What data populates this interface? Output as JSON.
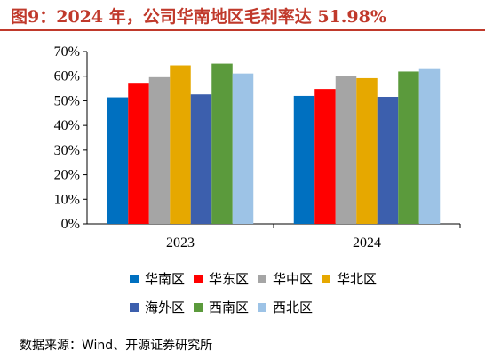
{
  "title": "图9：2024 年，公司华南地区毛利率达 51.98%",
  "source": "数据来源：Wind、开源证券研究所",
  "chart_data": {
    "type": "bar",
    "categories": [
      "2023",
      "2024"
    ],
    "ylim": [
      0,
      70
    ],
    "ytick_values": [
      0,
      10,
      20,
      30,
      40,
      50,
      60,
      70
    ],
    "ytick_labels": [
      "0%",
      "10%",
      "20%",
      "30%",
      "40%",
      "50%",
      "60%",
      "70%"
    ],
    "grid": false,
    "legend_position": "bottom",
    "series": [
      {
        "name": "华南区",
        "color": "#0070C0",
        "values": [
          51.4,
          51.98
        ]
      },
      {
        "name": "华东区",
        "color": "#FF0000",
        "values": [
          57.3,
          54.8
        ]
      },
      {
        "name": "华中区",
        "color": "#A5A5A5",
        "values": [
          59.6,
          60.0
        ]
      },
      {
        "name": "华北区",
        "color": "#E6A800",
        "values": [
          64.4,
          59.2
        ]
      },
      {
        "name": "海外区",
        "color": "#3C5FAD",
        "values": [
          52.6,
          51.6
        ]
      },
      {
        "name": "西南区",
        "color": "#5B9A3C",
        "values": [
          65.1,
          61.9
        ]
      },
      {
        "name": "西北区",
        "color": "#9DC3E6",
        "values": [
          61.1,
          62.9
        ]
      }
    ]
  }
}
